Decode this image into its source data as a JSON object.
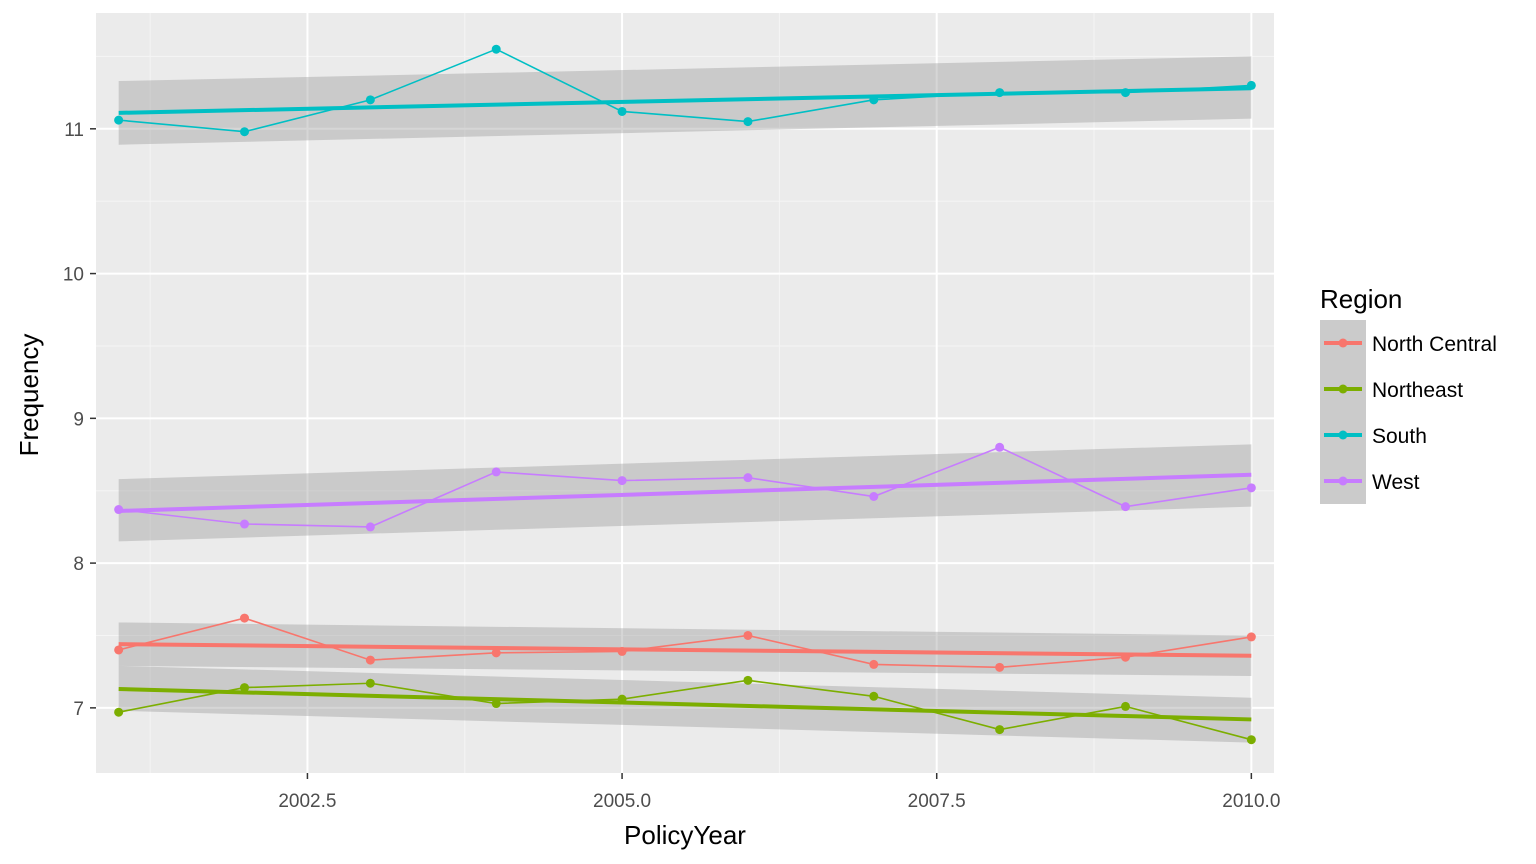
{
  "chart_data": {
    "type": "line",
    "xlabel": "PolicyYear",
    "ylabel": "Frequency",
    "xlim": [
      2000.82,
      2010.18
    ],
    "ylim": [
      6.55,
      11.8
    ],
    "x_ticks": [
      2002.5,
      2005.0,
      2007.5,
      2010.0
    ],
    "x_tick_labels": [
      "2002.5",
      "2005.0",
      "2007.5",
      "2010.0"
    ],
    "y_ticks": [
      7,
      8,
      9,
      10,
      11
    ],
    "y_tick_labels": [
      "7",
      "8",
      "9",
      "10",
      "11"
    ],
    "grid": true,
    "legend": {
      "title": "Region",
      "position": "right"
    },
    "x": [
      2001,
      2002,
      2003,
      2004,
      2005,
      2006,
      2007,
      2008,
      2009,
      2010
    ],
    "series": [
      {
        "name": "North Central",
        "color": "#F8766D",
        "values": [
          7.4,
          7.62,
          7.33,
          7.38,
          7.39,
          7.5,
          7.3,
          7.28,
          7.35,
          7.49
        ],
        "trend": [
          7.44,
          7.36
        ],
        "band": [
          [
            7.29,
            7.59
          ],
          [
            7.22,
            7.5
          ]
        ]
      },
      {
        "name": "Northeast",
        "color": "#7CAE00",
        "values": [
          6.97,
          7.14,
          7.17,
          7.03,
          7.06,
          7.19,
          7.08,
          6.85,
          7.01,
          6.78
        ],
        "trend": [
          7.13,
          6.92
        ],
        "band": [
          [
            6.98,
            7.29
          ],
          [
            6.76,
            7.07
          ]
        ]
      },
      {
        "name": "South",
        "color": "#00BFC4",
        "values": [
          11.06,
          10.98,
          11.2,
          11.55,
          11.12,
          11.05,
          11.2,
          11.25,
          11.25,
          11.3
        ],
        "trend": [
          11.11,
          11.28
        ],
        "band": [
          [
            10.89,
            11.33
          ],
          [
            11.07,
            11.5
          ]
        ]
      },
      {
        "name": "West",
        "color": "#C77CFF",
        "values": [
          8.37,
          8.27,
          8.25,
          8.63,
          8.57,
          8.59,
          8.46,
          8.8,
          8.39,
          8.52
        ],
        "trend": [
          8.36,
          8.61
        ],
        "band": [
          [
            8.15,
            8.58
          ],
          [
            8.39,
            8.82
          ]
        ]
      }
    ]
  }
}
